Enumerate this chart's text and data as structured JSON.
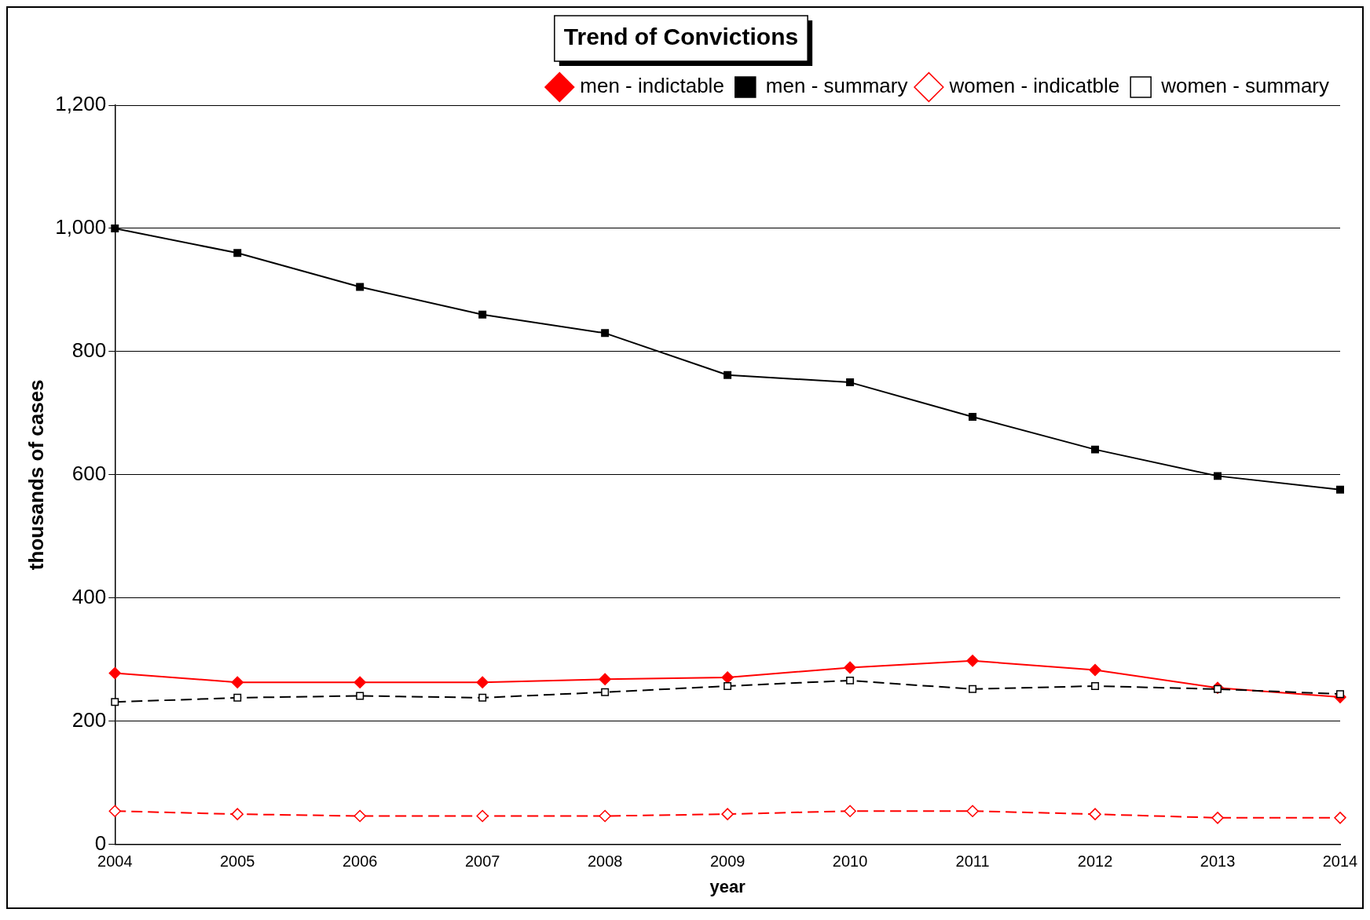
{
  "chart_data": {
    "type": "line",
    "title": "Trend of Convictions",
    "xlabel": "year",
    "ylabel": "thousands of cases",
    "categories": [
      "2004",
      "2005",
      "2006",
      "2007",
      "2008",
      "2009",
      "2010",
      "2011",
      "2012",
      "2013",
      "2014"
    ],
    "series": [
      {
        "name": "men - indictable",
        "color": "#ff0000",
        "marker": "diamond",
        "line_style": "solid",
        "values": [
          278,
          263,
          263,
          263,
          268,
          271,
          287,
          298,
          283,
          254,
          239
        ]
      },
      {
        "name": "men - summary",
        "color": "#000000",
        "marker": "square",
        "line_style": "solid",
        "values": [
          1000,
          960,
          905,
          860,
          830,
          762,
          750,
          694,
          641,
          598,
          576
        ]
      },
      {
        "name": "women - indicatble",
        "color": "#ff0000",
        "marker": "diamond",
        "line_style": "dashed",
        "values": [
          54,
          49,
          46,
          46,
          46,
          49,
          54,
          54,
          49,
          43,
          43
        ]
      },
      {
        "name": "women - summary",
        "color": "#000000",
        "marker": "square",
        "line_style": "dashed",
        "values": [
          231,
          238,
          241,
          238,
          247,
          257,
          266,
          252,
          257,
          252,
          244
        ]
      }
    ],
    "ylim": [
      0,
      1200
    ],
    "yticks": [
      0,
      200,
      400,
      600,
      800,
      {
        "value": 1000,
        "label": "1,000"
      },
      {
        "value": 1200,
        "label": "1,200"
      }
    ],
    "grid": "y",
    "legend": "top right"
  }
}
